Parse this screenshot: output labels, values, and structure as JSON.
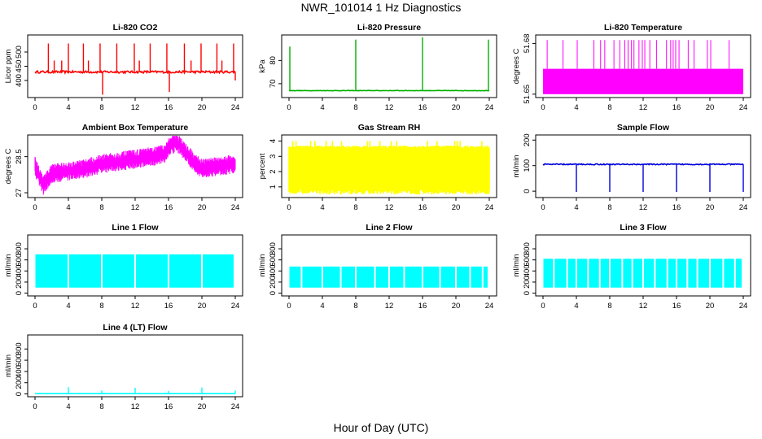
{
  "figure": {
    "title": "NWR_101014  1 Hz Diagnostics",
    "xlabel": "Hour of Day (UTC)"
  },
  "chart_data": [
    {
      "type": "line",
      "title": "Li-820 CO2",
      "ylabel": "Licor ppm",
      "color": "#ff0000",
      "xlim": [
        0,
        24
      ],
      "xticks": [
        0,
        4,
        8,
        12,
        16,
        20,
        24
      ],
      "ylim": [
        340,
        560
      ],
      "yticks": [
        400,
        450,
        500
      ],
      "series": [
        {
          "baseline": 430,
          "noise": 8,
          "spikes": [
            [
              1.6,
              530
            ],
            [
              2.3,
              470
            ],
            [
              3.2,
              470
            ],
            [
              4.0,
              530
            ],
            [
              5.8,
              530
            ],
            [
              6.4,
              470
            ],
            [
              7.8,
              530
            ],
            [
              8.1,
              350
            ],
            [
              9.8,
              530
            ],
            [
              11.9,
              530
            ],
            [
              12.5,
              470
            ],
            [
              13.8,
              530
            ],
            [
              15.8,
              530
            ],
            [
              16.1,
              360
            ],
            [
              17.9,
              530
            ],
            [
              18.7,
              470
            ],
            [
              19.9,
              530
            ],
            [
              21.8,
              530
            ],
            [
              22.4,
              470
            ],
            [
              23.8,
              530
            ],
            [
              24.0,
              400
            ]
          ]
        }
      ]
    },
    {
      "type": "line",
      "title": "Li-820 Pressure",
      "ylabel": "kPa",
      "color": "#00b000",
      "xlim": [
        0,
        24
      ],
      "xticks": [
        0,
        4,
        8,
        12,
        16,
        20,
        24
      ],
      "ylim": [
        64,
        91
      ],
      "yticks": [
        70,
        80
      ],
      "series": [
        {
          "baseline": 67,
          "noise": 0.2,
          "spikes": [
            [
              0.1,
              86
            ],
            [
              8.0,
              89
            ],
            [
              16.0,
              90
            ],
            [
              23.9,
              89
            ]
          ]
        }
      ]
    },
    {
      "type": "line",
      "title": "Li-820 Temperature",
      "ylabel": "degrees C",
      "color": "#ff00ff",
      "xlim": [
        0,
        24
      ],
      "xticks": [
        0,
        4,
        8,
        12,
        16,
        20,
        24
      ],
      "ylim": [
        51.648,
        51.685
      ],
      "yticks": [
        51.65,
        51.68
      ],
      "series": [
        {
          "band": [
            51.65,
            51.665
          ],
          "spike_top": 51.682,
          "spike_hours": [
            0.5,
            2.4,
            4.1,
            6.1,
            6.9,
            7.4,
            8.5,
            9.2,
            9.8,
            10.2,
            10.6,
            10.9,
            11.5,
            11.9,
            12.2,
            12.8,
            13.6,
            14.8,
            15.3,
            15.6,
            15.9,
            16.3,
            17.4,
            18.1,
            19.7,
            20.1,
            22.3
          ]
        }
      ]
    },
    {
      "type": "line",
      "title": "Ambient Box Temperature",
      "ylabel": "degrees C",
      "color": "#ff00ff",
      "xlim": [
        0,
        24
      ],
      "xticks": [
        0,
        4,
        8,
        12,
        16,
        20,
        24
      ],
      "ylim": [
        26.8,
        29.4
      ],
      "yticks": [
        27.0,
        28.5
      ],
      "series": [
        {
          "profile": [
            [
              0,
              28.1
            ],
            [
              1,
              27.3
            ],
            [
              2,
              27.8
            ],
            [
              4,
              27.9
            ],
            [
              6,
              28.0
            ],
            [
              8,
              28.2
            ],
            [
              10,
              28.3
            ],
            [
              12,
              28.4
            ],
            [
              14,
              28.5
            ],
            [
              15.5,
              28.6
            ],
            [
              16,
              28.9
            ],
            [
              17,
              29.1
            ],
            [
              18,
              28.7
            ],
            [
              19,
              28.3
            ],
            [
              20,
              28.0
            ],
            [
              22,
              28.1
            ],
            [
              24,
              28.2
            ]
          ],
          "amplitude": 0.4
        }
      ]
    },
    {
      "type": "area",
      "title": "Gas Stream RH",
      "ylabel": "percent",
      "color": "#ffff00",
      "xlim": [
        0,
        24
      ],
      "xticks": [
        0,
        4,
        8,
        12,
        16,
        20,
        24
      ],
      "ylim": [
        0.3,
        4.4
      ],
      "yticks": [
        1,
        2,
        3,
        4
      ],
      "series": [
        {
          "band_low": 0.9,
          "band_high": 3.7,
          "peak": 4.0
        }
      ]
    },
    {
      "type": "line",
      "title": "Sample Flow",
      "ylabel": "ml/min",
      "color": "#0000dd",
      "xlim": [
        0,
        24
      ],
      "xticks": [
        0,
        4,
        8,
        12,
        16,
        20,
        24
      ],
      "ylim": [
        -25,
        220
      ],
      "yticks": [
        0,
        100,
        200
      ],
      "series": [
        {
          "baseline": 105,
          "noise": 4,
          "dips": [
            [
              4,
              -3
            ],
            [
              8,
              -3
            ],
            [
              12,
              -3
            ],
            [
              16,
              -3
            ],
            [
              20,
              -3
            ],
            [
              24,
              -3
            ]
          ]
        }
      ]
    },
    {
      "type": "area",
      "title": "Line 1 Flow",
      "ylabel": "ml/min",
      "color": "#00ffff",
      "xlim": [
        0,
        24
      ],
      "xticks": [
        0,
        4,
        8,
        12,
        16,
        20,
        24
      ],
      "ylim": [
        -50,
        1050
      ],
      "yticks": [
        0,
        200,
        400,
        600,
        800
      ],
      "series": [
        {
          "band": [
            100,
            700
          ],
          "gaps": [
            4,
            8,
            12,
            16,
            20
          ]
        }
      ]
    },
    {
      "type": "area",
      "title": "Line 2 Flow",
      "ylabel": "ml/min",
      "color": "#00ffff",
      "xlim": [
        0,
        24
      ],
      "xticks": [
        0,
        4,
        8,
        12,
        16,
        20,
        24
      ],
      "ylim": [
        -50,
        1050
      ],
      "yticks": [
        0,
        200,
        400,
        600,
        800
      ],
      "series": [
        {
          "band": [
            100,
            480
          ],
          "gaps": [
            1.5,
            4,
            6.2,
            8,
            10.3,
            12,
            13.8,
            16,
            18.1,
            20,
            21.7,
            23.2
          ]
        }
      ]
    },
    {
      "type": "area",
      "title": "Line 3 Flow",
      "ylabel": "ml/min",
      "color": "#00ffff",
      "xlim": [
        0,
        24
      ],
      "xticks": [
        0,
        4,
        8,
        12,
        16,
        20,
        24
      ],
      "ylim": [
        -50,
        1050
      ],
      "yticks": [
        0,
        200,
        400,
        600,
        800
      ],
      "series": [
        {
          "band": [
            100,
            620
          ],
          "gaps": [
            1.3,
            2.9,
            4,
            5.4,
            6.8,
            8,
            9.5,
            10.7,
            12,
            13.4,
            14.9,
            16,
            17.3,
            18.5,
            20,
            21.6,
            23
          ]
        }
      ]
    },
    {
      "type": "line",
      "title": "Line 4 (LT) Flow",
      "ylabel": "ml/min",
      "color": "#00ffff",
      "xlim": [
        0,
        24
      ],
      "xticks": [
        0,
        4,
        8,
        12,
        16,
        20,
        24
      ],
      "ylim": [
        -50,
        1050
      ],
      "yticks": [
        0,
        200,
        400,
        600,
        800
      ],
      "series": [
        {
          "baseline": 5,
          "spikes": [
            [
              4,
              120
            ],
            [
              8,
              60
            ],
            [
              12,
              110
            ],
            [
              16,
              55
            ],
            [
              20,
              115
            ],
            [
              24,
              60
            ]
          ]
        }
      ]
    }
  ]
}
